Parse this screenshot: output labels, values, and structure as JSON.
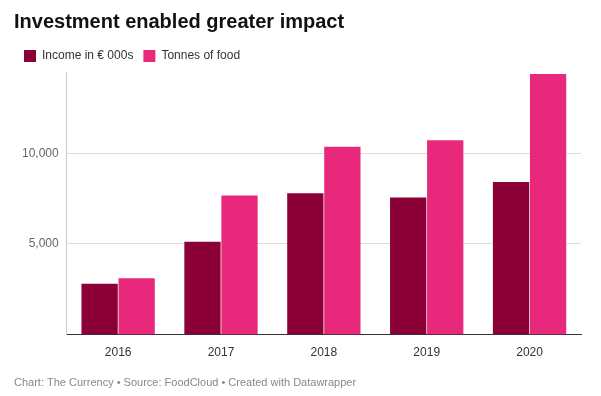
{
  "chart_data": {
    "type": "bar",
    "title": "Investment enabled greater impact",
    "caption": "Chart: The Currency • Source: FoodCloud • Created with Datawrapper",
    "categories": [
      "2016",
      "2017",
      "2018",
      "2019",
      "2020"
    ],
    "series": [
      {
        "name": "Income in € 000s",
        "color": "#8c0038",
        "values": [
          2800,
          5120,
          7800,
          7560,
          8420
        ]
      },
      {
        "name": "Tonnes of food",
        "color": "#e8287a",
        "values": [
          3100,
          7680,
          10370,
          10730,
          14390
        ]
      }
    ],
    "ylim": [
      0,
      14500
    ],
    "yticks": [
      {
        "value": 5000,
        "label": "5,000"
      },
      {
        "value": 10000,
        "label": "10,000"
      }
    ],
    "grid": true,
    "legend": "top-left"
  }
}
